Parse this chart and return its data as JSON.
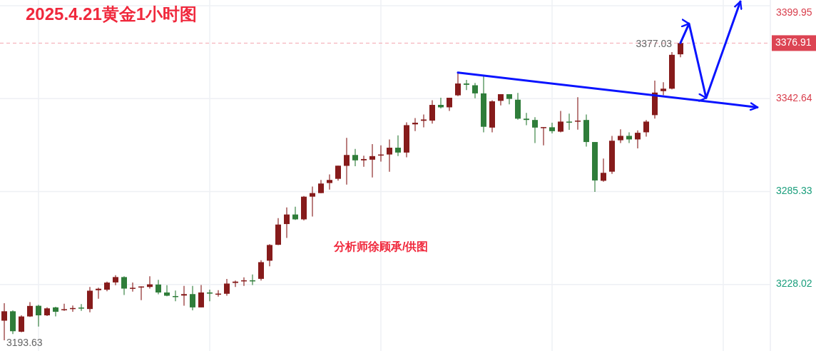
{
  "chart_data": {
    "type": "candlestick",
    "title": "2025.4.21黄金1小时图",
    "annotations": [
      "分析师徐顾承/供图",
      {
        "text": "3377.03",
        "y": 3377.03
      },
      "3193.63"
    ],
    "categories": [
      null,
      null,
      null,
      null,
      null,
      null,
      null,
      null,
      null,
      null,
      null,
      null,
      null,
      null,
      null,
      null,
      null,
      null,
      null,
      null,
      null,
      null,
      null,
      null,
      null,
      null,
      null,
      null,
      null,
      null,
      null,
      null,
      null,
      null,
      null,
      null,
      null,
      null,
      null,
      null,
      null,
      null,
      null,
      null,
      null,
      null,
      null,
      null,
      null,
      null,
      null,
      null,
      null,
      null,
      null,
      null,
      null,
      null,
      null,
      null,
      null,
      null,
      null,
      null,
      null,
      null,
      null,
      null,
      null,
      null,
      null,
      null,
      null,
      null,
      null,
      null,
      null,
      null,
      null,
      null,
      null,
      null,
      null,
      null,
      null,
      null,
      null,
      null,
      null,
      null
    ],
    "ohlc": [
      [
        3205.7,
        3216.5,
        3193.63,
        3211.5
      ],
      [
        3211.5,
        3212.1,
        3197.4,
        3199.2
      ],
      [
        3198.9,
        3209.0,
        3198.5,
        3208.3
      ],
      [
        3208.3,
        3217.1,
        3208.0,
        3214.8
      ],
      [
        3214.9,
        3215.5,
        3202.1,
        3209.0
      ],
      [
        3209.0,
        3213.9,
        3208.6,
        3213.3
      ],
      [
        3213.9,
        3214.3,
        3208.3,
        3211.2
      ],
      [
        3212.2,
        3216.1,
        3211.8,
        3212.8
      ],
      [
        3213.0,
        3215.1,
        3211.2,
        3213.5
      ],
      [
        3213.8,
        3215.9,
        3211.8,
        3213.3
      ],
      [
        3212.9,
        3226.5,
        3210.9,
        3224.2
      ],
      [
        3224.5,
        3226.0,
        3219.2,
        3225.4
      ],
      [
        3224.8,
        3229.8,
        3223.9,
        3229.2
      ],
      [
        3229.3,
        3233.7,
        3227.6,
        3232.6
      ],
      [
        3232.6,
        3233.1,
        3221.5,
        3225.5
      ],
      [
        3225.4,
        3229.2,
        3223.6,
        3226.0
      ],
      [
        3226.2,
        3226.8,
        3218.3,
        3226.8
      ],
      [
        3226.5,
        3233.1,
        3225.5,
        3228.1
      ],
      [
        3228.0,
        3230.9,
        3222.0,
        3223.1
      ],
      [
        3223.1,
        3227.6,
        3220.8,
        3221.1
      ],
      [
        3220.9,
        3224.3,
        3217.7,
        3220.4
      ],
      [
        3221.2,
        3227.1,
        3214.9,
        3222.1
      ],
      [
        3222.1,
        3227.1,
        3212.1,
        3213.9
      ],
      [
        3213.9,
        3227.7,
        3213.9,
        3223.1
      ],
      [
        3223.1,
        3224.8,
        3217.7,
        3222.4
      ],
      [
        3222.0,
        3224.5,
        3220.5,
        3222.4
      ],
      [
        3222.3,
        3231.4,
        3221.1,
        3228.6
      ],
      [
        3229.0,
        3230.4,
        3226.5,
        3229.8
      ],
      [
        3230.1,
        3232.4,
        3227.1,
        3230.6
      ],
      [
        3230.6,
        3234.2,
        3227.7,
        3230.1
      ],
      [
        3231.5,
        3243.0,
        3230.4,
        3241.8
      ],
      [
        3242.7,
        3252.9,
        3239.2,
        3252.4
      ],
      [
        3252.5,
        3269.0,
        3252.3,
        3265.0
      ],
      [
        3265.3,
        3275.6,
        3256.8,
        3271.2
      ],
      [
        3271.2,
        3276.0,
        3267.9,
        3268.2
      ],
      [
        3268.2,
        3282.6,
        3267.5,
        3282.2
      ],
      [
        3282.2,
        3288.4,
        3270.0,
        3284.4
      ],
      [
        3284.4,
        3292.5,
        3284.4,
        3290.3
      ],
      [
        3290.6,
        3295.9,
        3286.6,
        3292.5
      ],
      [
        3293.2,
        3301.3,
        3292.1,
        3301.3
      ],
      [
        3301.2,
        3318.5,
        3289.6,
        3307.9
      ],
      [
        3307.9,
        3311.6,
        3301.0,
        3304.6
      ],
      [
        3304.6,
        3307.5,
        3300.6,
        3305.4
      ],
      [
        3305.0,
        3314.6,
        3294.0,
        3307.2
      ],
      [
        3307.7,
        3313.8,
        3303.8,
        3308.2
      ],
      [
        3308.2,
        3317.5,
        3297.6,
        3312.4
      ],
      [
        3312.4,
        3320.0,
        3307.2,
        3309.4
      ],
      [
        3309.4,
        3328.0,
        3306.5,
        3326.3
      ],
      [
        3326.8,
        3330.7,
        3322.6,
        3327.8
      ],
      [
        3329.0,
        3332.9,
        3325.0,
        3329.8
      ],
      [
        3329.1,
        3341.7,
        3327.3,
        3338.8
      ],
      [
        3338.8,
        3343.2,
        3336.6,
        3337.3
      ],
      [
        3337.3,
        3343.2,
        3335.1,
        3343.2
      ],
      [
        3344.7,
        3359.1,
        3344.2,
        3352.0
      ],
      [
        3352.0,
        3354.2,
        3347.9,
        3351.2
      ],
      [
        3350.9,
        3352.3,
        3342.9,
        3345.9
      ],
      [
        3345.9,
        3356.7,
        3321.9,
        3325.3
      ],
      [
        3324.8,
        3341.7,
        3321.9,
        3341.0
      ],
      [
        3341.3,
        3345.4,
        3338.5,
        3345.4
      ],
      [
        3345.4,
        3345.4,
        3339.1,
        3342.5
      ],
      [
        3342.0,
        3346.2,
        3329.7,
        3330.3
      ],
      [
        3330.3,
        3333.9,
        3326.3,
        3329.5
      ],
      [
        3329.5,
        3331.2,
        3315.3,
        3324.8
      ],
      [
        3324.7,
        3325.1,
        3313.8,
        3325.1
      ],
      [
        3325.0,
        3327.8,
        3321.2,
        3322.6
      ],
      [
        3322.3,
        3335.1,
        3321.9,
        3328.5
      ],
      [
        3328.5,
        3333.4,
        3323.4,
        3327.9
      ],
      [
        3328.5,
        3343.5,
        3323.5,
        3329.1
      ],
      [
        3329.5,
        3332.9,
        3313.1,
        3315.9
      ],
      [
        3315.9,
        3315.9,
        3285.1,
        3292.2
      ],
      [
        3292.0,
        3305.7,
        3291.4,
        3296.9
      ],
      [
        3297.6,
        3319.7,
        3296.2,
        3316.7
      ],
      [
        3317.0,
        3323.7,
        3315.3,
        3319.7
      ],
      [
        3319.7,
        3321.9,
        3315.3,
        3317.5
      ],
      [
        3317.5,
        3323.1,
        3312.0,
        3321.6
      ],
      [
        3321.9,
        3329.5,
        3319.2,
        3328.5
      ],
      [
        3332.5,
        3353.8,
        3330.3,
        3346.4
      ],
      [
        3347.3,
        3352.8,
        3344.7,
        3348.8
      ],
      [
        3348.8,
        3371.4,
        3348.4,
        3369.7
      ],
      [
        3370.0,
        3377.03,
        3368.2,
        3376.91
      ],
      null,
      null,
      null,
      null,
      null,
      null,
      null,
      null,
      null,
      null
    ],
    "colors": [
      "#861b1b",
      "#2f7d3a",
      "#861b1b",
      "#861b1b",
      "#2f7d3a",
      "#861b1b",
      "#2f7d3a",
      "#861b1b",
      "#861b1b",
      "#2f7d3a",
      "#861b1b",
      "#861b1b",
      "#861b1b",
      "#861b1b",
      "#2f7d3a",
      "#861b1b",
      "#861b1b",
      "#861b1b",
      "#2f7d3a",
      "#2f7d3a",
      "#2f7d3a",
      "#861b1b",
      "#2f7d3a",
      "#861b1b",
      "#2f7d3a",
      "#861b1b",
      "#861b1b",
      "#861b1b",
      "#861b1b",
      "#2f7d3a",
      "#861b1b",
      "#861b1b",
      "#861b1b",
      "#861b1b",
      "#2f7d3a",
      "#861b1b",
      "#861b1b",
      "#861b1b",
      "#861b1b",
      "#861b1b",
      "#861b1b",
      "#2f7d3a",
      "#861b1b",
      "#861b1b",
      "#861b1b",
      "#861b1b",
      "#2f7d3a",
      "#861b1b",
      "#861b1b",
      "#861b1b",
      "#861b1b",
      "#2f7d3a",
      "#861b1b",
      "#861b1b",
      "#2f7d3a",
      "#2f7d3a",
      "#2f7d3a",
      "#861b1b",
      "#861b1b",
      "#2f7d3a",
      "#2f7d3a",
      "#2f7d3a",
      "#2f7d3a",
      "#861b1b",
      "#2f7d3a",
      "#861b1b",
      "#2f7d3a",
      "#861b1b",
      "#2f7d3a",
      "#2f7d3a",
      "#861b1b",
      "#861b1b",
      "#861b1b",
      "#2f7d3a",
      "#861b1b",
      "#861b1b",
      "#861b1b",
      "#861b1b",
      "#861b1b",
      "#861b1b",
      null,
      null,
      null,
      null,
      null,
      null,
      null,
      null,
      null,
      null
    ],
    "series": [
      {
        "type": "line",
        "color": "#0a14ff",
        "values": [
          null,
          null,
          null,
          null,
          null,
          null,
          null,
          null,
          null,
          null,
          null,
          null,
          null,
          null,
          null,
          null,
          null,
          null,
          null,
          null,
          null,
          null,
          null,
          null,
          null,
          null,
          null,
          null,
          null,
          null,
          null,
          null,
          null,
          null,
          null,
          null,
          null,
          null,
          null,
          null,
          null,
          null,
          null,
          null,
          null,
          null,
          null,
          null,
          null,
          null,
          null,
          null,
          null,
          3358.7,
          null,
          null,
          null,
          null,
          null,
          null,
          null,
          null,
          null,
          null,
          null,
          null,
          null,
          null,
          null,
          null,
          null,
          null,
          null,
          null,
          null,
          null,
          null,
          null,
          null,
          null,
          null,
          null,
          null,
          null,
          null,
          null,
          null,
          null,
          3337.3,
          null
        ]
      },
      {
        "type": "line",
        "color": "#0a14ff",
        "values": [
          null,
          null,
          null,
          null,
          null,
          null,
          null,
          null,
          null,
          null,
          null,
          null,
          null,
          null,
          null,
          null,
          null,
          null,
          null,
          null,
          null,
          null,
          null,
          null,
          null,
          null,
          null,
          null,
          null,
          null,
          null,
          null,
          null,
          null,
          null,
          null,
          null,
          null,
          null,
          null,
          null,
          null,
          null,
          null,
          null,
          null,
          null,
          null,
          null,
          null,
          null,
          null,
          null,
          null,
          null,
          null,
          null,
          null,
          null,
          null,
          null,
          null,
          null,
          null,
          null,
          null,
          null,
          null,
          null,
          null,
          null,
          null,
          null,
          null,
          null,
          null,
          null,
          null,
          null,
          3377.0,
          3388.9,
          null,
          3343.1,
          null,
          null,
          null,
          3402.6,
          null,
          null,
          null
        ]
      }
    ],
    "marker": "none",
    "ylim": [
      3187,
      3403.5
    ],
    "yticks": [
      3399.95,
      3342.64,
      3285.33,
      3228.02
    ],
    "ref_lines": [
      {
        "axis": "y",
        "value": 3376.91,
        "label": "3376.91",
        "color": "#f4a6b0",
        "line_style": "dashed"
      }
    ],
    "grid": true,
    "tick_labels": "y"
  }
}
